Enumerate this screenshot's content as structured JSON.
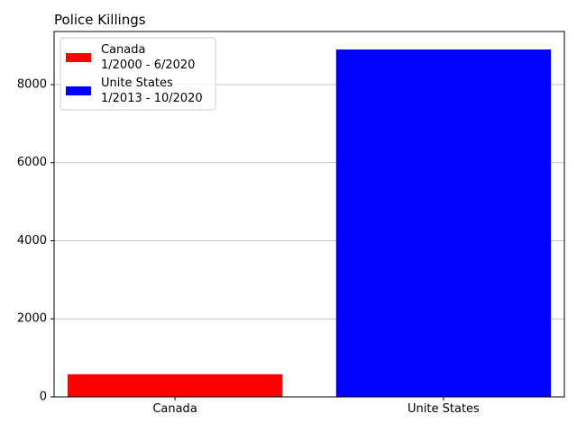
{
  "chart_data": {
    "type": "bar",
    "title": "Police Killings",
    "xlabel": "",
    "ylabel": "",
    "categories": [
      "Canada",
      "Unite States"
    ],
    "values": [
      580,
      8900
    ],
    "colors": [
      "#ff0000",
      "#0000ff"
    ],
    "ylim": [
      0,
      9360
    ],
    "yticks": [
      0,
      2000,
      4000,
      6000,
      8000
    ],
    "grid": "y",
    "legend_position": "top-left",
    "legend": [
      {
        "name": "Canada",
        "period": "1/2000 - 6/2020",
        "color": "#ff0000"
      },
      {
        "name": "Unite States",
        "period": "1/2013 - 10/2020",
        "color": "#0000ff"
      }
    ]
  }
}
